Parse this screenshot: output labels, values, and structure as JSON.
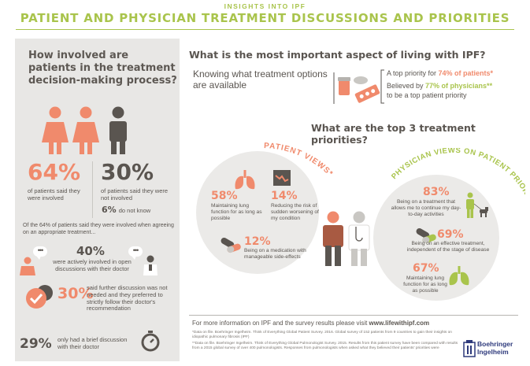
{
  "header": {
    "kicker": "INSIGHTS INTO IPF",
    "title": "PATIENT AND PHYSICIAN TREATMENT DISCUSSIONS AND PRIORITIES"
  },
  "left": {
    "heading": "How involved are patients in the treatment decision-making process?",
    "stat_involved": {
      "value": "64%",
      "caption": "of patients said they were involved"
    },
    "stat_not_involved": {
      "value": "30%",
      "caption": "of patients said they were not involved"
    },
    "dont_know": {
      "value": "6%",
      "caption": "do not know"
    },
    "subnote": "Of the 64% of patients said they were involved when agreeing on an appropriate treatment...",
    "row1": {
      "value": "40%",
      "caption": "were actively involved in open discussions with their doctor"
    },
    "row2": {
      "value": "30%",
      "caption": "said further discussion was not needed and they preferred to strictly follow their doctor's recommendation"
    },
    "row3": {
      "value": "29%",
      "caption": "only had a brief discussion with their doctor"
    },
    "bubble_dots": "•••"
  },
  "aspect": {
    "question": "What is the most important aspect of living with IPF?",
    "answer": "Knowing what treatment options are available",
    "patients_prefix": "A top priority for ",
    "patients_value": "74% of patients*",
    "physicians_prefix": "Believed by ",
    "physicians_value": "77% of physicians**",
    "physicians_suffix": "to be a top patient priority"
  },
  "priorities": {
    "question": "What are the top 3 treatment priorities?",
    "patient_label": "PATIENT VIEWS*",
    "physician_label": "PHYSICIAN VIEWS ON PATIENT PRIORITIES**",
    "patient_items": [
      {
        "value": "58%",
        "caption": "Maintaining lung function for as long as possible"
      },
      {
        "value": "14%",
        "caption": "Reducing the risk of sudden worsening of my condition"
      },
      {
        "value": "12%",
        "caption": "Being on a medication with manageable side-effects"
      }
    ],
    "physician_items": [
      {
        "value": "83%",
        "caption": "Being on a treatment that allows me to continue my day-to-day activities"
      },
      {
        "value": "69%",
        "caption": "Being on an effective treatment, independent of the stage of disease"
      },
      {
        "value": "67%",
        "caption": "Maintaining lung function for as long as possible"
      }
    ]
  },
  "footer": {
    "more_info": "For more information on IPF and the survey results please visit ",
    "url": "www.lifewithipf.com",
    "note1": "*Data on file. Boehringer Ingelheim. Think of Everything Global Patient Survey. 2016. Global survey of 152 patients from 9 countries to gain their insights on idiopathic pulmonary fibrosis (IPF)",
    "note2": "**Data on file. Boehringer Ingelheim. Think of Everything Global Pulmonologist Survey. 2015. Results from this patient survey have been compared with results from a 2015 global survey of over 400 pulmonologists. Responses from pulmonologists when asked what they believed their patients' priorities were",
    "logo_line1": "Boehringer",
    "logo_line2": "Ingelheim"
  },
  "colors": {
    "accent_green": "#a9c44c",
    "coral": "#f08a6c",
    "dark": "#5a5550",
    "panel_grey": "#e8e7e5",
    "logo_blue": "#2e3a7c"
  }
}
